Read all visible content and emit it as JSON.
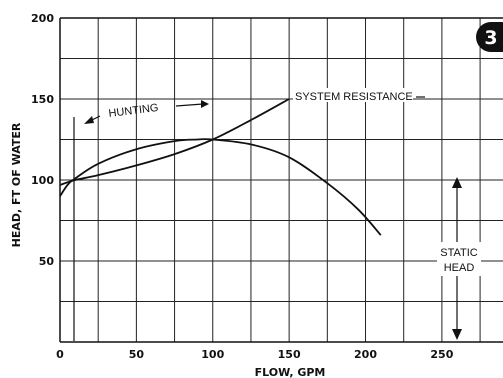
{
  "badge": "3",
  "chart_data": {
    "type": "line",
    "title": "",
    "xlabel": "FLOW, GPM",
    "ylabel": "HEAD, FT OF WATER",
    "xlim": [
      0,
      290
    ],
    "ylim": [
      0,
      200
    ],
    "x_ticks": [
      0,
      50,
      100,
      150,
      200,
      250
    ],
    "y_ticks": [
      50,
      100,
      150,
      200
    ],
    "grid": true,
    "series": [
      {
        "name": "SYSTEM RESISTANCE",
        "points": [
          [
            0,
            97
          ],
          [
            10,
            100
          ],
          [
            25,
            103
          ],
          [
            50,
            109
          ],
          [
            75,
            116
          ],
          [
            100,
            125
          ],
          [
            125,
            137
          ],
          [
            150,
            150
          ]
        ]
      },
      {
        "name": "",
        "points": [
          [
            0,
            90
          ],
          [
            5,
            97
          ],
          [
            10,
            101
          ],
          [
            25,
            110
          ],
          [
            50,
            119
          ],
          [
            75,
            124
          ],
          [
            90,
            125
          ],
          [
            100,
            125
          ],
          [
            125,
            122
          ],
          [
            150,
            114
          ],
          [
            175,
            98
          ],
          [
            195,
            82
          ],
          [
            210,
            66
          ]
        ]
      }
    ],
    "annotations": [
      {
        "id": "hunting",
        "text": "HUNTING"
      },
      {
        "id": "system",
        "text": "SYSTEM RESISTANCE"
      },
      {
        "id": "static1",
        "text": "STATIC"
      },
      {
        "id": "static2",
        "text": "HEAD"
      }
    ]
  }
}
